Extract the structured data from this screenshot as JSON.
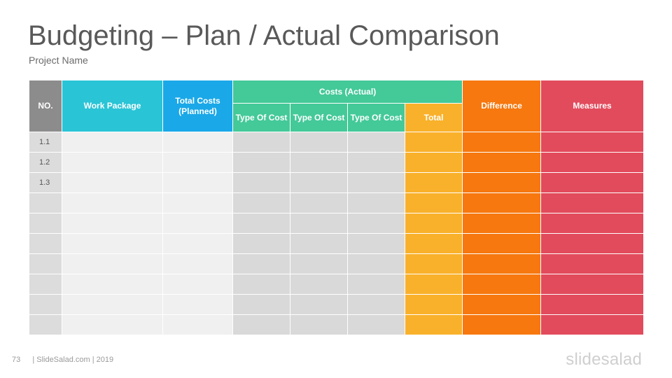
{
  "slide": {
    "title": "Budgeting – Plan / Actual Comparison",
    "subtitle": "Project Name"
  },
  "colors": {
    "no_header": "#8c8c8c",
    "work_package_header": "#29c4d6",
    "total_costs_header": "#1aa8e8",
    "costs_actual_header": "#44c999",
    "total": "#f9b12b",
    "difference": "#f6780f",
    "measures": "#e24b5c",
    "body_light": "#f0f0f0",
    "body_grey": "#d9d9d9"
  },
  "table": {
    "headers": {
      "no": "NO.",
      "work_package": "Work Package",
      "total_costs_planned": "Total Costs (Planned)",
      "costs_actual": "Costs (Actual)",
      "type_of_cost_1": "Type Of Cost",
      "type_of_cost_2": "Type Of Cost",
      "type_of_cost_3": "Type Of Cost",
      "total": "Total",
      "difference": "Difference",
      "measures": "Measures"
    },
    "rows": [
      {
        "no": "1.1",
        "work_package": "",
        "total_planned": "",
        "cost1": "",
        "cost2": "",
        "cost3": "",
        "total": "",
        "difference": "",
        "measures": ""
      },
      {
        "no": "1.2",
        "work_package": "",
        "total_planned": "",
        "cost1": "",
        "cost2": "",
        "cost3": "",
        "total": "",
        "difference": "",
        "measures": ""
      },
      {
        "no": "1.3",
        "work_package": "",
        "total_planned": "",
        "cost1": "",
        "cost2": "",
        "cost3": "",
        "total": "",
        "difference": "",
        "measures": ""
      },
      {
        "no": "",
        "work_package": "",
        "total_planned": "",
        "cost1": "",
        "cost2": "",
        "cost3": "",
        "total": "",
        "difference": "",
        "measures": ""
      },
      {
        "no": "",
        "work_package": "",
        "total_planned": "",
        "cost1": "",
        "cost2": "",
        "cost3": "",
        "total": "",
        "difference": "",
        "measures": ""
      },
      {
        "no": "",
        "work_package": "",
        "total_planned": "",
        "cost1": "",
        "cost2": "",
        "cost3": "",
        "total": "",
        "difference": "",
        "measures": ""
      },
      {
        "no": "",
        "work_package": "",
        "total_planned": "",
        "cost1": "",
        "cost2": "",
        "cost3": "",
        "total": "",
        "difference": "",
        "measures": ""
      },
      {
        "no": "",
        "work_package": "",
        "total_planned": "",
        "cost1": "",
        "cost2": "",
        "cost3": "",
        "total": "",
        "difference": "",
        "measures": ""
      },
      {
        "no": "",
        "work_package": "",
        "total_planned": "",
        "cost1": "",
        "cost2": "",
        "cost3": "",
        "total": "",
        "difference": "",
        "measures": ""
      },
      {
        "no": "",
        "work_package": "",
        "total_planned": "",
        "cost1": "",
        "cost2": "",
        "cost3": "",
        "total": "",
        "difference": "",
        "measures": ""
      }
    ]
  },
  "footer": {
    "page_number": "73",
    "credit": "| SlideSalad.com | 2019",
    "logo_text": "slidesalad"
  }
}
